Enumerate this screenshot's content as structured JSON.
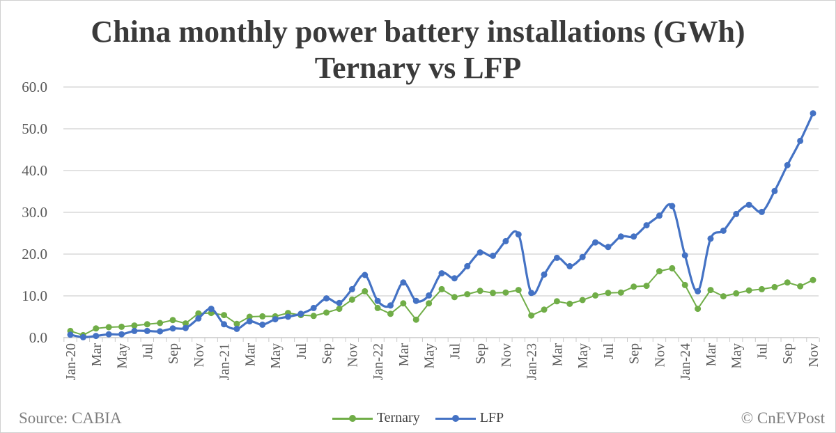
{
  "chart_data": {
    "type": "line",
    "title": [
      "China monthly power battery installations (GWh)",
      "Ternary vs LFP"
    ],
    "xlabel": "",
    "ylabel": "",
    "ylim": [
      0,
      60
    ],
    "yticks": [
      "0.0",
      "10.0",
      "20.0",
      "30.0",
      "40.0",
      "50.0",
      "60.0"
    ],
    "grid": true,
    "legend": "bottom",
    "x": [
      "Jan-20",
      "Feb",
      "Mar",
      "Apr",
      "May",
      "Jun",
      "Jul",
      "Aug",
      "Sep",
      "Oct",
      "Nov",
      "Dec",
      "Jan-21",
      "Feb",
      "Mar",
      "Apr",
      "May",
      "Jun",
      "Jul",
      "Aug",
      "Sep",
      "Oct",
      "Nov",
      "Dec",
      "Jan-22",
      "Feb",
      "Mar",
      "Apr",
      "May",
      "Jun",
      "Jul",
      "Aug",
      "Sep",
      "Oct",
      "Nov",
      "Dec",
      "Jan-23",
      "Feb",
      "Mar",
      "Apr",
      "May",
      "Jun",
      "Jul",
      "Aug",
      "Sep",
      "Oct",
      "Nov",
      "Dec",
      "Jan-24",
      "Feb",
      "Mar",
      "Apr",
      "May",
      "Jun",
      "Jul",
      "Aug",
      "Sep",
      "Oct",
      "Nov"
    ],
    "series": [
      {
        "name": "Ternary",
        "color": "#70AD47",
        "values": [
          1.6,
          0.6,
          2.2,
          2.5,
          2.6,
          2.9,
          3.2,
          3.5,
          4.2,
          3.4,
          5.8,
          5.9,
          5.4,
          3.3,
          5.0,
          5.1,
          5.1,
          5.9,
          5.4,
          5.2,
          6.0,
          6.9,
          9.1,
          11.1,
          7.1,
          5.7,
          8.2,
          4.3,
          8.2,
          11.6,
          9.7,
          10.4,
          11.2,
          10.7,
          10.8,
          11.4,
          5.3,
          6.7,
          8.7,
          8.1,
          9.0,
          10.1,
          10.7,
          10.8,
          12.2,
          12.4,
          15.9,
          16.6,
          12.6,
          6.9,
          11.4,
          9.9,
          10.6,
          11.3,
          11.6,
          12.1,
          13.2,
          12.3,
          13.8
        ]
      },
      {
        "name": "LFP",
        "color": "#4472C4",
        "values": [
          0.7,
          0.1,
          0.4,
          0.8,
          0.8,
          1.6,
          1.6,
          1.5,
          2.2,
          2.3,
          4.6,
          6.9,
          3.2,
          2.1,
          3.9,
          3.1,
          4.4,
          5.0,
          5.7,
          7.1,
          9.4,
          8.3,
          11.6,
          15.0,
          8.8,
          7.7,
          13.2,
          8.8,
          10.1,
          15.4,
          14.2,
          17.1,
          20.4,
          19.6,
          23.1,
          24.7,
          10.7,
          15.1,
          19.1,
          17.1,
          19.3,
          22.8,
          21.7,
          24.2,
          24.2,
          26.9,
          29.2,
          31.5,
          19.7,
          11.1,
          23.7,
          25.6,
          29.6,
          31.8,
          30.1,
          35.1,
          41.3,
          47.1,
          53.7
        ]
      }
    ]
  },
  "footer": {
    "source": "Source: CABIA",
    "copyright": "© CnEVPost"
  }
}
